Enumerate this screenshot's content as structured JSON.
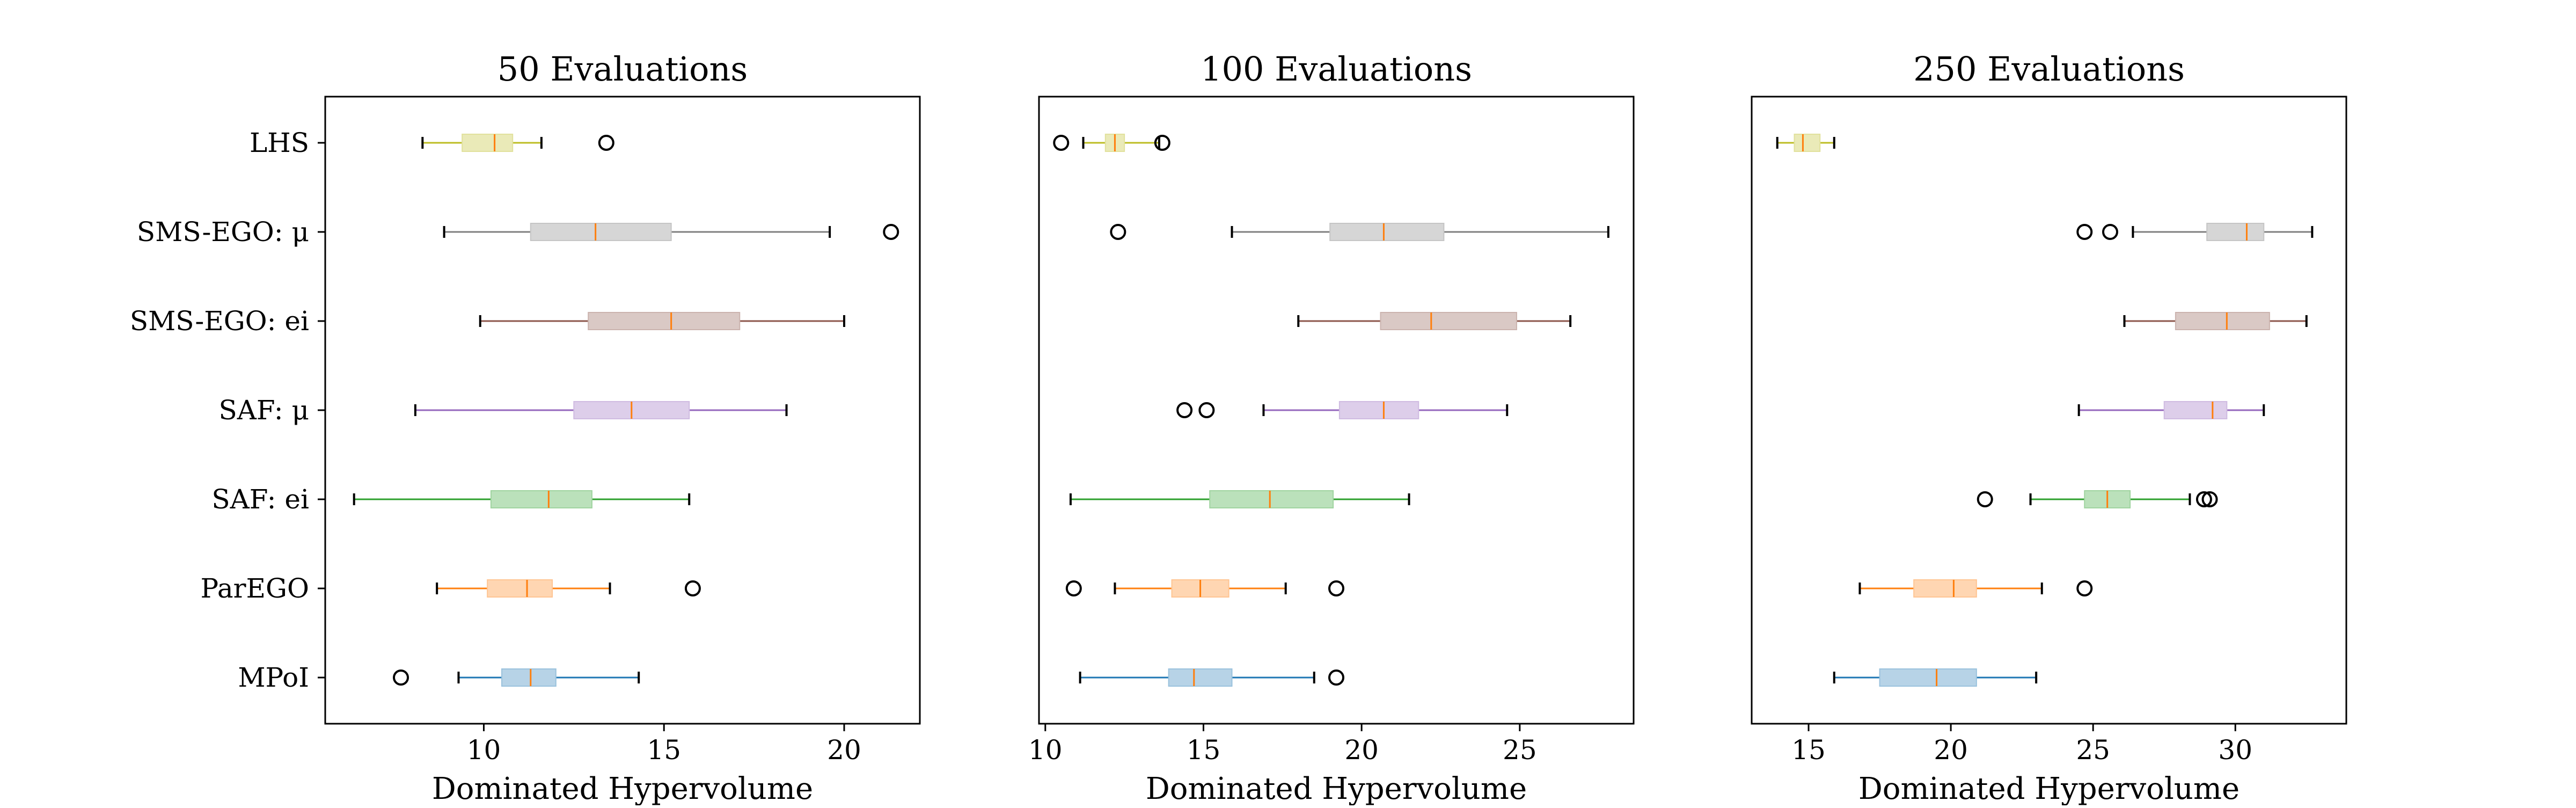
{
  "chart_data": [
    {
      "type": "boxplot",
      "orientation": "horizontal",
      "title": "50 Evaluations",
      "xlabel": "Dominated Hypervolume",
      "ylabel": "",
      "xlim": [
        5.6,
        22.1
      ],
      "xticks": [
        10,
        15,
        20
      ],
      "grid": false,
      "categories": [
        "LHS",
        "SMS-EGO: μ",
        "SMS-EGO: ei",
        "SAF: μ",
        "SAF: ei",
        "ParEGO",
        "MPoI"
      ],
      "series": [
        {
          "name": "LHS",
          "color": "#bcbd22",
          "whisker_low": 8.3,
          "q1": 9.4,
          "median": 10.3,
          "q3": 10.8,
          "whisker_high": 11.6,
          "outliers": [
            13.4
          ]
        },
        {
          "name": "SMS-EGO: μ",
          "color": "#7f7f7f",
          "whisker_low": 8.9,
          "q1": 11.3,
          "median": 13.1,
          "q3": 15.2,
          "whisker_high": 19.6,
          "outliers": [
            21.3
          ]
        },
        {
          "name": "SMS-EGO: ei",
          "color": "#8c564b",
          "whisker_low": 9.9,
          "q1": 12.9,
          "median": 15.2,
          "q3": 17.1,
          "whisker_high": 20.0,
          "outliers": []
        },
        {
          "name": "SAF: μ",
          "color": "#9467bd",
          "whisker_low": 8.1,
          "q1": 12.5,
          "median": 14.1,
          "q3": 15.7,
          "whisker_high": 18.4,
          "outliers": []
        },
        {
          "name": "SAF: ei",
          "color": "#2ca02c",
          "whisker_low": 6.4,
          "q1": 10.2,
          "median": 11.8,
          "q3": 13.0,
          "whisker_high": 15.7,
          "outliers": []
        },
        {
          "name": "ParEGO",
          "color": "#ff7f0e",
          "whisker_low": 8.7,
          "q1": 10.1,
          "median": 11.2,
          "q3": 11.9,
          "whisker_high": 13.5,
          "outliers": [
            15.8
          ]
        },
        {
          "name": "MPoI",
          "color": "#1f77b4",
          "whisker_low": 9.3,
          "q1": 10.5,
          "median": 11.3,
          "q3": 12.0,
          "whisker_high": 14.3,
          "outliers": [
            7.7
          ]
        }
      ]
    },
    {
      "type": "boxplot",
      "orientation": "horizontal",
      "title": "100 Evaluations",
      "xlabel": "Dominated Hypervolume",
      "ylabel": "",
      "xlim": [
        9.8,
        28.6
      ],
      "xticks": [
        10,
        15,
        20,
        25
      ],
      "grid": false,
      "categories": [
        "LHS",
        "SMS-EGO: μ",
        "SMS-EGO: ei",
        "SAF: μ",
        "SAF: ei",
        "ParEGO",
        "MPoI"
      ],
      "series": [
        {
          "name": "LHS",
          "color": "#bcbd22",
          "whisker_low": 11.2,
          "q1": 11.9,
          "median": 12.2,
          "q3": 12.5,
          "whisker_high": 13.6,
          "outliers": [
            10.5,
            13.7
          ]
        },
        {
          "name": "SMS-EGO: μ",
          "color": "#7f7f7f",
          "whisker_low": 15.9,
          "q1": 19.0,
          "median": 20.7,
          "q3": 22.6,
          "whisker_high": 27.8,
          "outliers": [
            12.3
          ]
        },
        {
          "name": "SMS-EGO: ei",
          "color": "#8c564b",
          "whisker_low": 18.0,
          "q1": 20.6,
          "median": 22.2,
          "q3": 24.9,
          "whisker_high": 26.6,
          "outliers": []
        },
        {
          "name": "SAF: μ",
          "color": "#9467bd",
          "whisker_low": 16.9,
          "q1": 19.3,
          "median": 20.7,
          "q3": 21.8,
          "whisker_high": 24.6,
          "outliers": [
            14.4,
            15.1
          ]
        },
        {
          "name": "SAF: ei",
          "color": "#2ca02c",
          "whisker_low": 10.8,
          "q1": 15.2,
          "median": 17.1,
          "q3": 19.1,
          "whisker_high": 21.5,
          "outliers": []
        },
        {
          "name": "ParEGO",
          "color": "#ff7f0e",
          "whisker_low": 12.2,
          "q1": 14.0,
          "median": 14.9,
          "q3": 15.8,
          "whisker_high": 17.6,
          "outliers": [
            10.9,
            19.2
          ]
        },
        {
          "name": "MPoI",
          "color": "#1f77b4",
          "whisker_low": 11.1,
          "q1": 13.9,
          "median": 14.7,
          "q3": 15.9,
          "whisker_high": 18.5,
          "outliers": [
            19.2
          ]
        }
      ]
    },
    {
      "type": "boxplot",
      "orientation": "horizontal",
      "title": "250 Evaluations",
      "xlabel": "Dominated Hypervolume",
      "ylabel": "",
      "xlim": [
        13.0,
        33.9
      ],
      "xticks": [
        15,
        20,
        25,
        30
      ],
      "grid": false,
      "categories": [
        "LHS",
        "SMS-EGO: μ",
        "SMS-EGO: ei",
        "SAF: μ",
        "SAF: ei",
        "ParEGO",
        "MPoI"
      ],
      "series": [
        {
          "name": "LHS",
          "color": "#bcbd22",
          "whisker_low": 13.9,
          "q1": 14.5,
          "median": 14.8,
          "q3": 15.4,
          "whisker_high": 15.9,
          "outliers": []
        },
        {
          "name": "SMS-EGO: μ",
          "color": "#7f7f7f",
          "whisker_low": 26.4,
          "q1": 29.0,
          "median": 30.4,
          "q3": 31.0,
          "whisker_high": 32.7,
          "outliers": [
            24.7,
            25.6
          ]
        },
        {
          "name": "SMS-EGO: ei",
          "color": "#8c564b",
          "whisker_low": 26.1,
          "q1": 27.9,
          "median": 29.7,
          "q3": 31.2,
          "whisker_high": 32.5,
          "outliers": []
        },
        {
          "name": "SAF: μ",
          "color": "#9467bd",
          "whisker_low": 24.5,
          "q1": 27.5,
          "median": 29.2,
          "q3": 29.7,
          "whisker_high": 31.0,
          "outliers": []
        },
        {
          "name": "SAF: ei",
          "color": "#2ca02c",
          "whisker_low": 22.8,
          "q1": 24.7,
          "median": 25.5,
          "q3": 26.3,
          "whisker_high": 28.4,
          "outliers": [
            21.2,
            28.9,
            29.1
          ]
        },
        {
          "name": "ParEGO",
          "color": "#ff7f0e",
          "whisker_low": 16.8,
          "q1": 18.7,
          "median": 20.1,
          "q3": 20.9,
          "whisker_high": 23.2,
          "outliers": [
            24.7
          ]
        },
        {
          "name": "MPoI",
          "color": "#1f77b4",
          "whisker_low": 15.9,
          "q1": 17.5,
          "median": 19.5,
          "q3": 20.9,
          "whisker_high": 23.0,
          "outliers": []
        }
      ]
    }
  ]
}
